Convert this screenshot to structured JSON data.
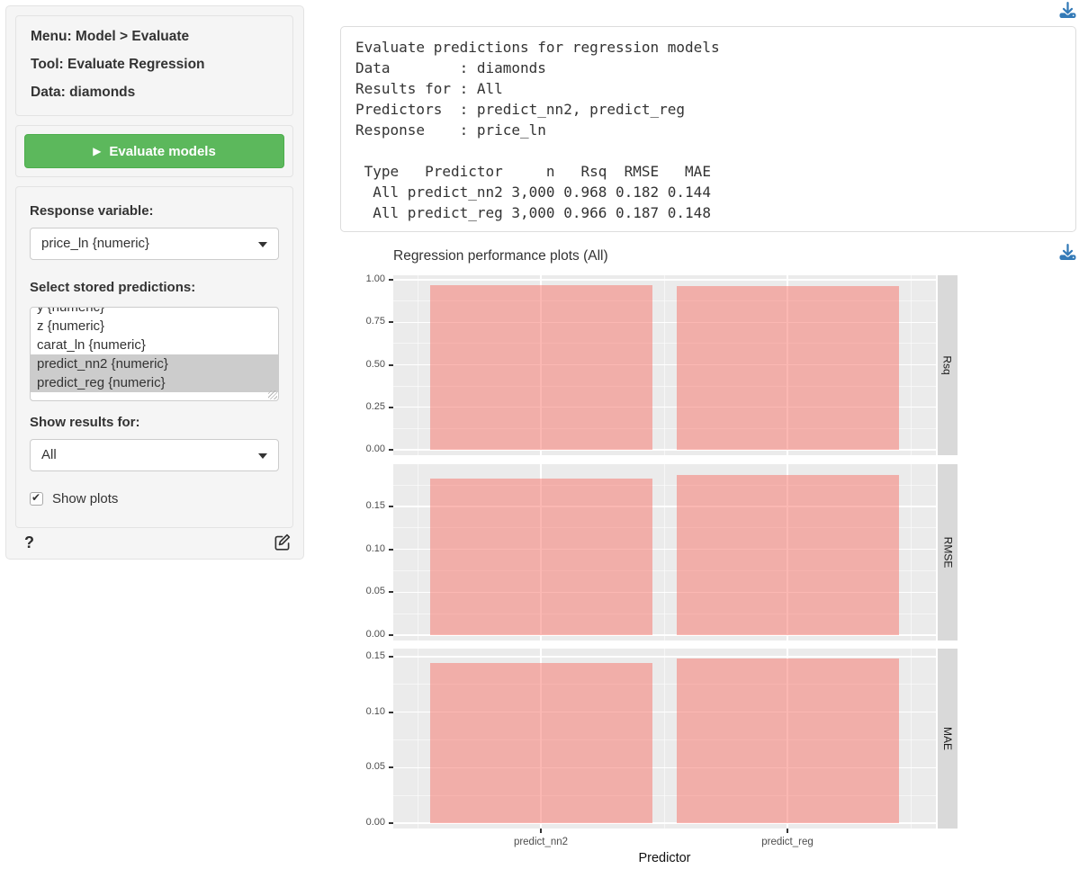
{
  "colors": {
    "accent_green": "#5cb85c",
    "accent_green_border": "#4cae4c",
    "download_blue": "#337ab7",
    "selected_option_bg": "#cccccc"
  },
  "sidebar": {
    "summary": {
      "menu": "Menu: Model > Evaluate",
      "tool": "Tool: Evaluate Regression",
      "data": "Data: diamonds"
    },
    "evaluate_button": "Evaluate models",
    "response_variable": {
      "label": "Response variable:",
      "value": "price_ln {numeric}"
    },
    "predictions": {
      "label": "Select stored predictions:",
      "items": [
        {
          "label": "y {numeric}",
          "selected": false
        },
        {
          "label": "z {numeric}",
          "selected": false
        },
        {
          "label": "carat_ln {numeric}",
          "selected": false
        },
        {
          "label": "predict_nn2 {numeric}",
          "selected": true
        },
        {
          "label": "predict_reg {numeric}",
          "selected": true
        }
      ]
    },
    "show_results_for": {
      "label": "Show results for:",
      "value": "All"
    },
    "show_plots": {
      "label": "Show plots",
      "checked": true
    },
    "help": "?"
  },
  "output": {
    "lines": [
      "Evaluate predictions for regression models",
      "Data        : diamonds",
      "Results for : All",
      "Predictors  : predict_nn2, predict_reg",
      "Response    : price_ln",
      "",
      " Type   Predictor     n   Rsq  RMSE   MAE",
      "  All predict_nn2 3,000 0.968 0.182 0.144",
      "  All predict_reg 3,000 0.966 0.187 0.148"
    ]
  },
  "chart_data": {
    "type": "bar",
    "title": "Regression performance plots (All)",
    "xlabel": "Predictor",
    "ylabel": "",
    "categories": [
      "predict_nn2",
      "predict_reg"
    ],
    "legend": "none",
    "facets": [
      {
        "label": "Rsq",
        "values": [
          0.968,
          0.966
        ],
        "domain": [
          -0.032,
          1.027
        ],
        "ticks": [
          {
            "v": 0,
            "label": "0.00"
          },
          {
            "v": 0.25,
            "label": "0.25"
          },
          {
            "v": 0.5,
            "label": "0.50"
          },
          {
            "v": 0.75,
            "label": "0.75"
          },
          {
            "v": 1,
            "label": "1.00"
          }
        ],
        "minor": [
          0.125,
          0.375,
          0.625,
          0.875
        ]
      },
      {
        "label": "RMSE",
        "values": [
          0.182,
          0.187
        ],
        "domain": [
          -0.0063,
          0.1993
        ],
        "ticks": [
          {
            "v": 0,
            "label": "0.00"
          },
          {
            "v": 0.05,
            "label": "0.05"
          },
          {
            "v": 0.1,
            "label": "0.10"
          },
          {
            "v": 0.15,
            "label": "0.15"
          }
        ],
        "minor": [
          0.025,
          0.075,
          0.125,
          0.175
        ]
      },
      {
        "label": "MAE",
        "values": [
          0.144,
          0.148
        ],
        "domain": [
          -0.0049,
          0.1573
        ],
        "ticks": [
          {
            "v": 0,
            "label": "0.00"
          },
          {
            "v": 0.05,
            "label": "0.05"
          },
          {
            "v": 0.1,
            "label": "0.10"
          },
          {
            "v": 0.15,
            "label": "0.15"
          }
        ],
        "minor": [
          0.025,
          0.075,
          0.125
        ]
      }
    ],
    "colors": {
      "bar": "rgba(248,118,109,0.52)",
      "panel_bg": "#EBEBEB",
      "strip_bg": "#D9D9D9",
      "grid_major": "#ffffff",
      "grid_minor": "rgba(255,255,255,0.55)"
    }
  }
}
